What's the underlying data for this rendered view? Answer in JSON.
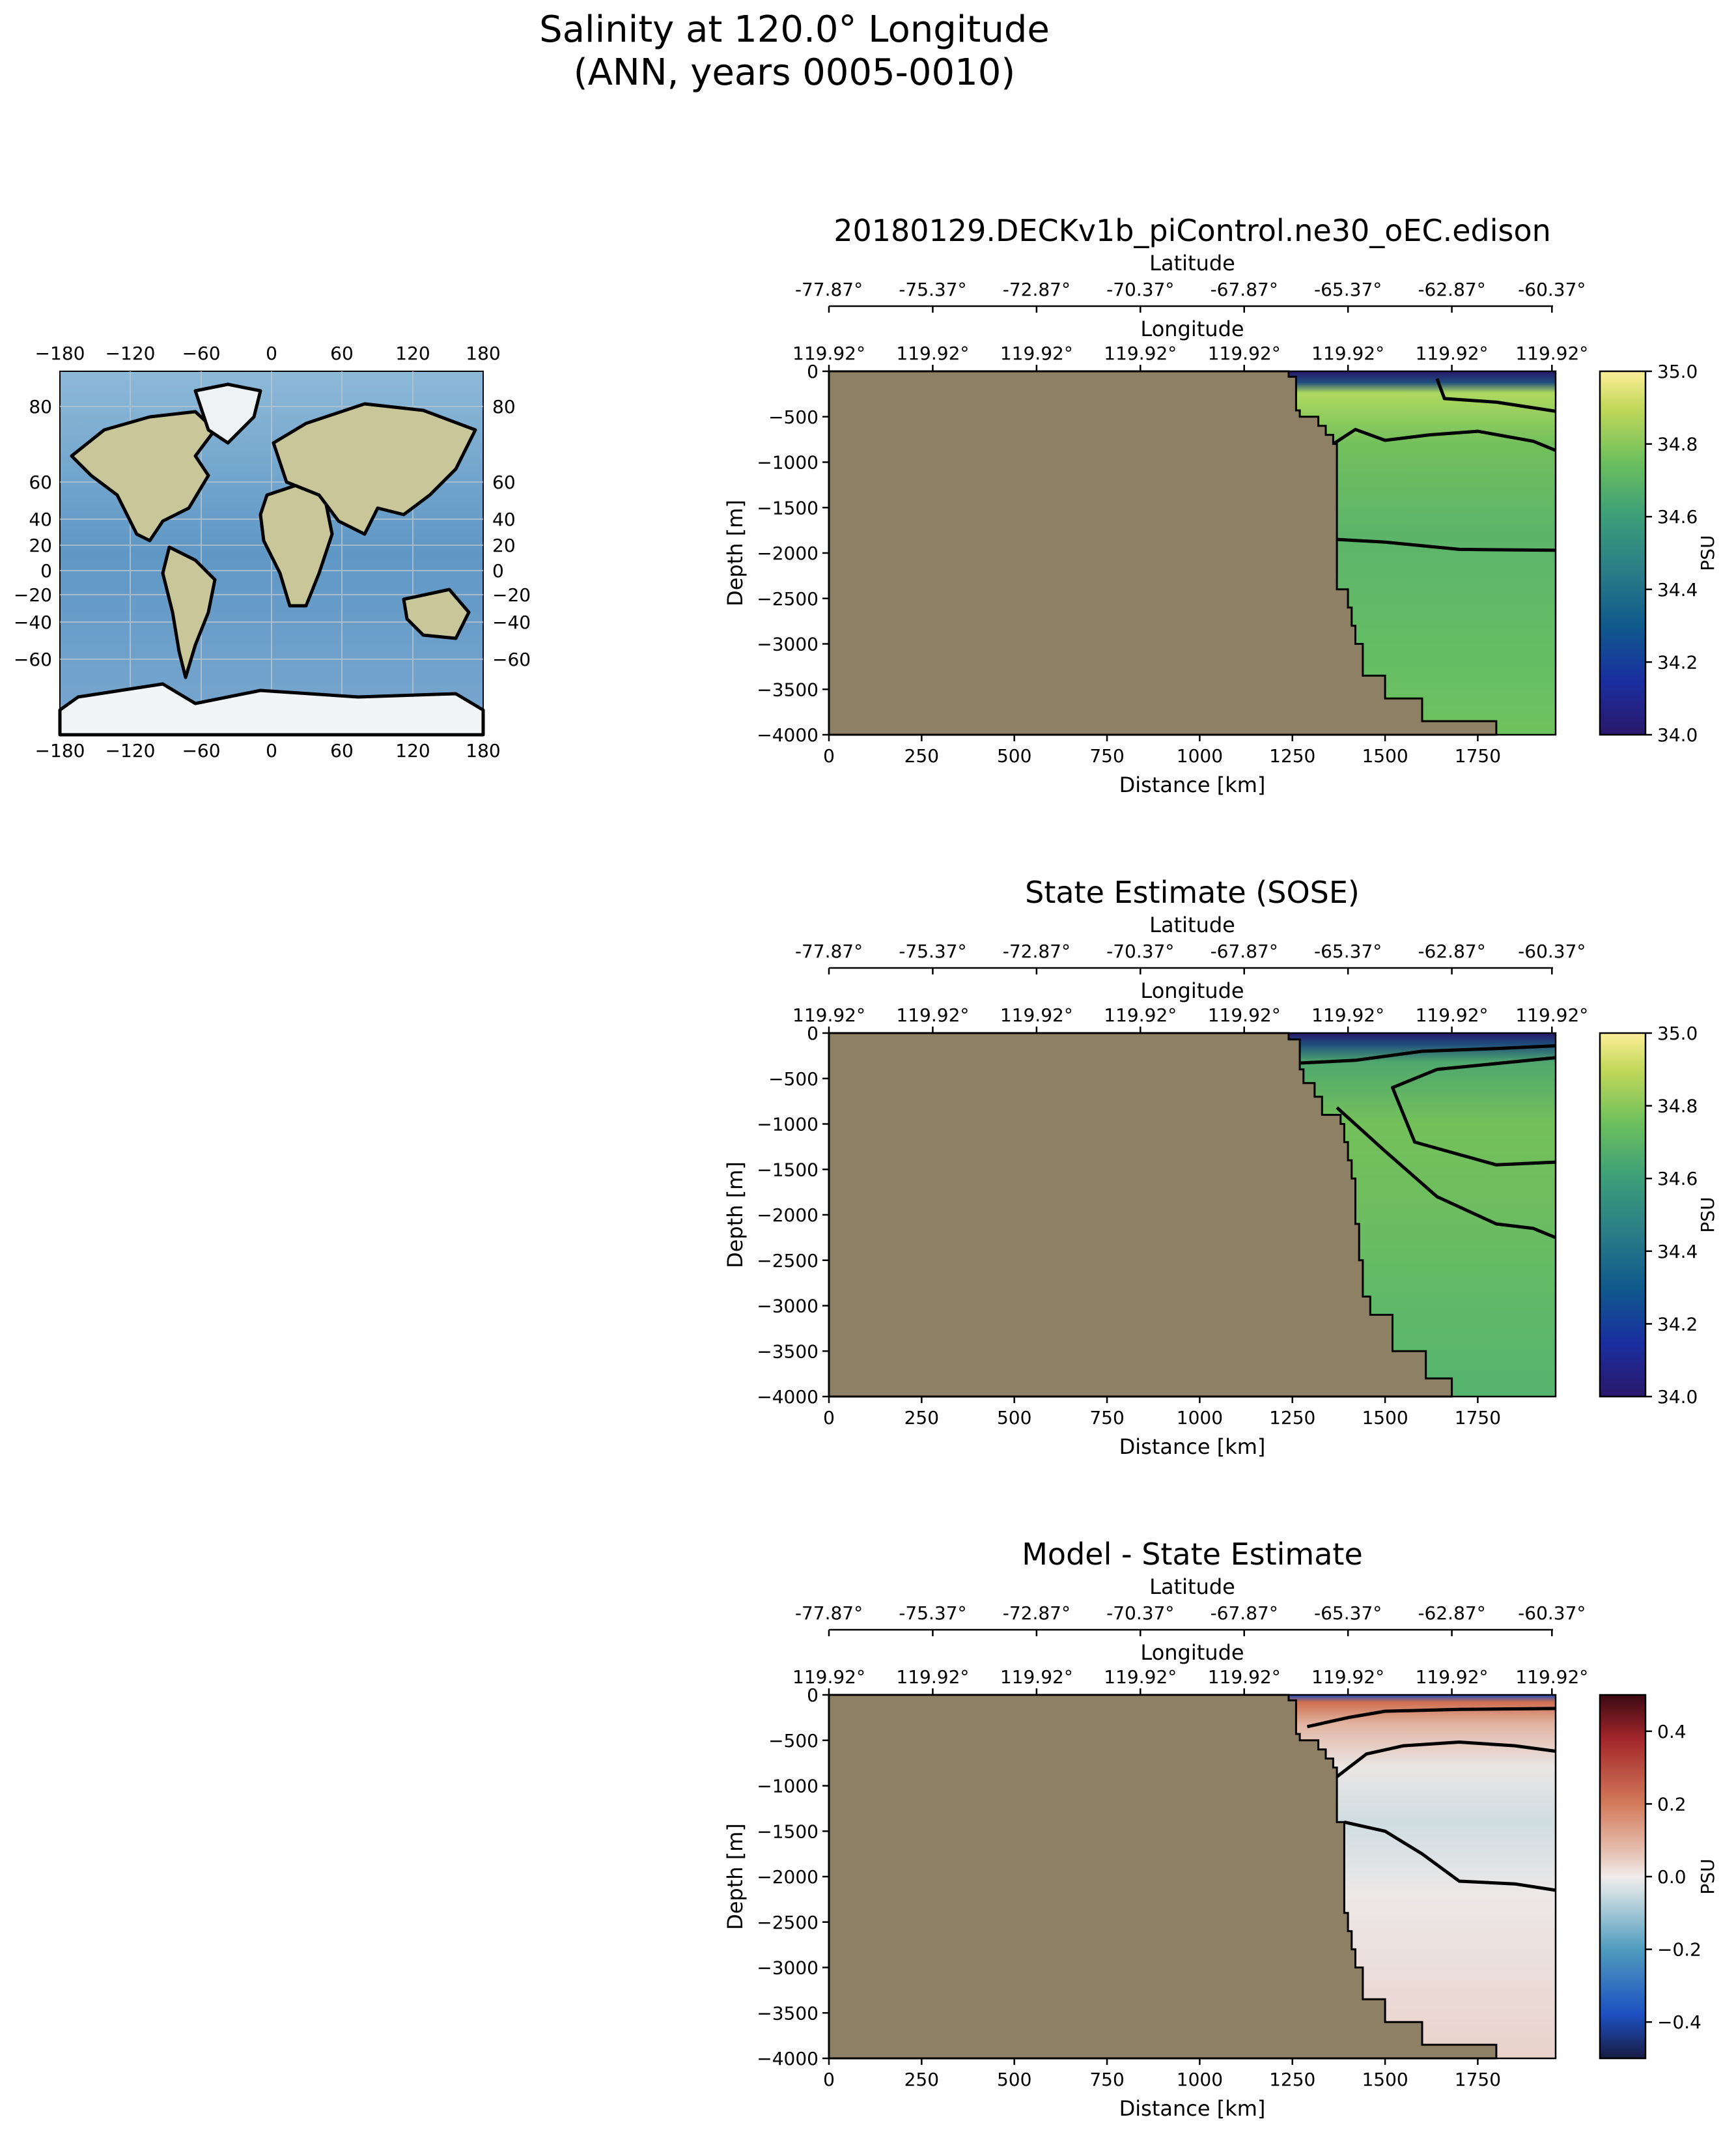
{
  "figure": {
    "suptitle_line1": "Salinity at 120.0° Longitude",
    "suptitle_line2": "(ANN, years 0005-0010)"
  },
  "colors": {
    "land": "#8e8064",
    "ocean_map": "#77a9cf",
    "contour": "#000000"
  },
  "map": {
    "icon": "world-map-icon",
    "xticks": [
      "−180",
      "−120",
      "−60",
      "0",
      "60",
      "120",
      "180"
    ],
    "yticks_left": [
      "80",
      "60",
      "40",
      "20",
      "0",
      "−20",
      "−40",
      "−60"
    ],
    "yticks_right": [
      "80",
      "60",
      "40",
      "20",
      "0",
      "−20",
      "−40",
      "−60"
    ]
  },
  "chart_data": [
    {
      "type": "heatmap",
      "title": "20180129.DECKv1b_piControl.ne30_oEC.edison",
      "xlabel": "Distance [km]",
      "ylabel": "Depth [m]",
      "xlim": [
        0,
        1960
      ],
      "ylim": [
        -4000,
        0
      ],
      "xticks": [
        0,
        250,
        500,
        750,
        1000,
        1250,
        1500,
        1750
      ],
      "yticks": [
        0,
        -500,
        -1000,
        -1500,
        -2000,
        -2500,
        -3000,
        -3500,
        -4000
      ],
      "top_axis_lat_label": "Latitude",
      "lat_ticks": [
        "-77.87°",
        "-75.37°",
        "-72.87°",
        "-70.37°",
        "-67.87°",
        "-65.37°",
        "-62.87°",
        "-60.37°"
      ],
      "top_axis_lon_label": "Longitude",
      "lon_ticks": [
        "119.92°",
        "119.92°",
        "119.92°",
        "119.92°",
        "119.92°",
        "119.92°",
        "119.92°",
        "119.92°"
      ],
      "colorbar": {
        "label": "PSU",
        "range": [
          34.0,
          35.0
        ],
        "ticks": [
          "34.0",
          "34.2",
          "34.4",
          "34.6",
          "34.8",
          "35.0"
        ],
        "colormap": "haline"
      },
      "bathymetry": [
        [
          1240,
          0
        ],
        [
          1240,
          -60
        ],
        [
          1260,
          -60
        ],
        [
          1260,
          -430
        ],
        [
          1270,
          -430
        ],
        [
          1270,
          -500
        ],
        [
          1320,
          -500
        ],
        [
          1320,
          -600
        ],
        [
          1340,
          -600
        ],
        [
          1340,
          -700
        ],
        [
          1360,
          -700
        ],
        [
          1360,
          -800
        ],
        [
          1370,
          -800
        ],
        [
          1370,
          -2400
        ],
        [
          1400,
          -2400
        ],
        [
          1400,
          -2600
        ],
        [
          1410,
          -2600
        ],
        [
          1410,
          -2800
        ],
        [
          1420,
          -2800
        ],
        [
          1420,
          -3000
        ],
        [
          1440,
          -3000
        ],
        [
          1440,
          -3350
        ],
        [
          1500,
          -3350
        ],
        [
          1500,
          -3600
        ],
        [
          1600,
          -3600
        ],
        [
          1600,
          -3850
        ],
        [
          1800,
          -3850
        ],
        [
          1800,
          -4000
        ]
      ],
      "contours": [
        {
          "level": 34.6,
          "points": [
            [
              1370,
              -1850
            ],
            [
              1500,
              -1880
            ],
            [
              1700,
              -1960
            ],
            [
              1960,
              -1970
            ]
          ]
        },
        {
          "level": 34.7,
          "points": [
            [
              1360,
              -800
            ],
            [
              1420,
              -640
            ],
            [
              1500,
              -760
            ],
            [
              1620,
              -700
            ],
            [
              1750,
              -660
            ],
            [
              1900,
              -770
            ],
            [
              1960,
              -870
            ]
          ]
        },
        {
          "level": 34.8,
          "points": [
            [
              1640,
              -80
            ],
            [
              1660,
              -300
            ],
            [
              1800,
              -340
            ],
            [
              1960,
              -440
            ]
          ]
        }
      ]
    },
    {
      "type": "heatmap",
      "title": "State Estimate (SOSE)",
      "xlabel": "Distance [km]",
      "ylabel": "Depth [m]",
      "xlim": [
        0,
        1960
      ],
      "ylim": [
        -4000,
        0
      ],
      "xticks": [
        0,
        250,
        500,
        750,
        1000,
        1250,
        1500,
        1750
      ],
      "yticks": [
        0,
        -500,
        -1000,
        -1500,
        -2000,
        -2500,
        -3000,
        -3500,
        -4000
      ],
      "top_axis_lat_label": "Latitude",
      "lat_ticks": [
        "-77.87°",
        "-75.37°",
        "-72.87°",
        "-70.37°",
        "-67.87°",
        "-65.37°",
        "-62.87°",
        "-60.37°"
      ],
      "top_axis_lon_label": "Longitude",
      "lon_ticks": [
        "119.92°",
        "119.92°",
        "119.92°",
        "119.92°",
        "119.92°",
        "119.92°",
        "119.92°",
        "119.92°"
      ],
      "colorbar": {
        "label": "PSU",
        "range": [
          34.0,
          35.0
        ],
        "ticks": [
          "34.0",
          "34.2",
          "34.4",
          "34.6",
          "34.8",
          "35.0"
        ],
        "colormap": "haline"
      },
      "bathymetry": [
        [
          1240,
          0
        ],
        [
          1240,
          -70
        ],
        [
          1270,
          -70
        ],
        [
          1270,
          -400
        ],
        [
          1280,
          -400
        ],
        [
          1280,
          -550
        ],
        [
          1310,
          -550
        ],
        [
          1310,
          -700
        ],
        [
          1330,
          -700
        ],
        [
          1330,
          -900
        ],
        [
          1380,
          -900
        ],
        [
          1380,
          -1000
        ],
        [
          1390,
          -1000
        ],
        [
          1390,
          -1200
        ],
        [
          1400,
          -1200
        ],
        [
          1400,
          -1400
        ],
        [
          1410,
          -1400
        ],
        [
          1410,
          -1600
        ],
        [
          1420,
          -1600
        ],
        [
          1420,
          -2100
        ],
        [
          1430,
          -2100
        ],
        [
          1430,
          -2500
        ],
        [
          1440,
          -2500
        ],
        [
          1440,
          -2900
        ],
        [
          1460,
          -2900
        ],
        [
          1460,
          -3100
        ],
        [
          1520,
          -3100
        ],
        [
          1520,
          -3500
        ],
        [
          1610,
          -3500
        ],
        [
          1610,
          -3800
        ],
        [
          1680,
          -3800
        ],
        [
          1680,
          -4000
        ]
      ],
      "contours": [
        {
          "level": 34.6,
          "points": [
            [
              1370,
              -820
            ],
            [
              1500,
              -1300
            ],
            [
              1640,
              -1800
            ],
            [
              1800,
              -2100
            ],
            [
              1900,
              -2150
            ],
            [
              1960,
              -2250
            ]
          ]
        },
        {
          "level": 34.7,
          "points": [
            [
              1270,
              -330
            ],
            [
              1420,
              -300
            ],
            [
              1600,
              -200
            ],
            [
              1800,
              -170
            ],
            [
              1960,
              -140
            ]
          ]
        },
        {
          "level": 34.8,
          "points": [
            [
              1960,
              -270
            ],
            [
              1640,
              -400
            ],
            [
              1520,
              -600
            ],
            [
              1580,
              -1200
            ],
            [
              1800,
              -1450
            ],
            [
              1960,
              -1420
            ]
          ]
        }
      ]
    },
    {
      "type": "heatmap",
      "title": "Model - State Estimate",
      "xlabel": "Distance [km]",
      "ylabel": "Depth [m]",
      "xlim": [
        0,
        1960
      ],
      "ylim": [
        -4000,
        0
      ],
      "xticks": [
        0,
        250,
        500,
        750,
        1000,
        1250,
        1500,
        1750
      ],
      "yticks": [
        0,
        -500,
        -1000,
        -1500,
        -2000,
        -2500,
        -3000,
        -3500,
        -4000
      ],
      "top_axis_lat_label": "Latitude",
      "lat_ticks": [
        "-77.87°",
        "-75.37°",
        "-72.87°",
        "-70.37°",
        "-67.87°",
        "-65.37°",
        "-62.87°",
        "-60.37°"
      ],
      "top_axis_lon_label": "Longitude",
      "lon_ticks": [
        "119.92°",
        "119.92°",
        "119.92°",
        "119.92°",
        "119.92°",
        "119.92°",
        "119.92°",
        "119.92°"
      ],
      "colorbar": {
        "label": "PSU",
        "range": [
          -0.5,
          0.5
        ],
        "ticks": [
          "−0.4",
          "−0.2",
          "0.0",
          "0.2",
          "0.4"
        ],
        "colormap": "balance"
      },
      "bathymetry": [
        [
          1240,
          0
        ],
        [
          1240,
          -60
        ],
        [
          1260,
          -60
        ],
        [
          1260,
          -430
        ],
        [
          1270,
          -430
        ],
        [
          1270,
          -500
        ],
        [
          1320,
          -500
        ],
        [
          1320,
          -600
        ],
        [
          1340,
          -600
        ],
        [
          1340,
          -700
        ],
        [
          1360,
          -700
        ],
        [
          1360,
          -800
        ],
        [
          1370,
          -800
        ],
        [
          1370,
          -1400
        ],
        [
          1390,
          -1400
        ],
        [
          1390,
          -2400
        ],
        [
          1400,
          -2400
        ],
        [
          1400,
          -2600
        ],
        [
          1410,
          -2600
        ],
        [
          1410,
          -2800
        ],
        [
          1420,
          -2800
        ],
        [
          1420,
          -3000
        ],
        [
          1440,
          -3000
        ],
        [
          1440,
          -3350
        ],
        [
          1500,
          -3350
        ],
        [
          1500,
          -3600
        ],
        [
          1600,
          -3600
        ],
        [
          1600,
          -3850
        ],
        [
          1800,
          -3850
        ],
        [
          1800,
          -4000
        ]
      ],
      "contours": [
        {
          "level": 0.0,
          "points": [
            [
              1390,
              -1400
            ],
            [
              1500,
              -1500
            ],
            [
              1600,
              -1750
            ],
            [
              1700,
              -2050
            ],
            [
              1850,
              -2080
            ],
            [
              1960,
              -2150
            ]
          ]
        },
        {
          "level": 0.0,
          "points": [
            [
              1370,
              -900
            ],
            [
              1450,
              -650
            ],
            [
              1550,
              -560
            ],
            [
              1700,
              -520
            ],
            [
              1850,
              -560
            ],
            [
              1960,
              -620
            ]
          ]
        },
        {
          "level": 0.1,
          "points": [
            [
              1290,
              -350
            ],
            [
              1400,
              -250
            ],
            [
              1500,
              -180
            ],
            [
              1700,
              -160
            ],
            [
              1960,
              -150
            ]
          ]
        }
      ]
    }
  ]
}
